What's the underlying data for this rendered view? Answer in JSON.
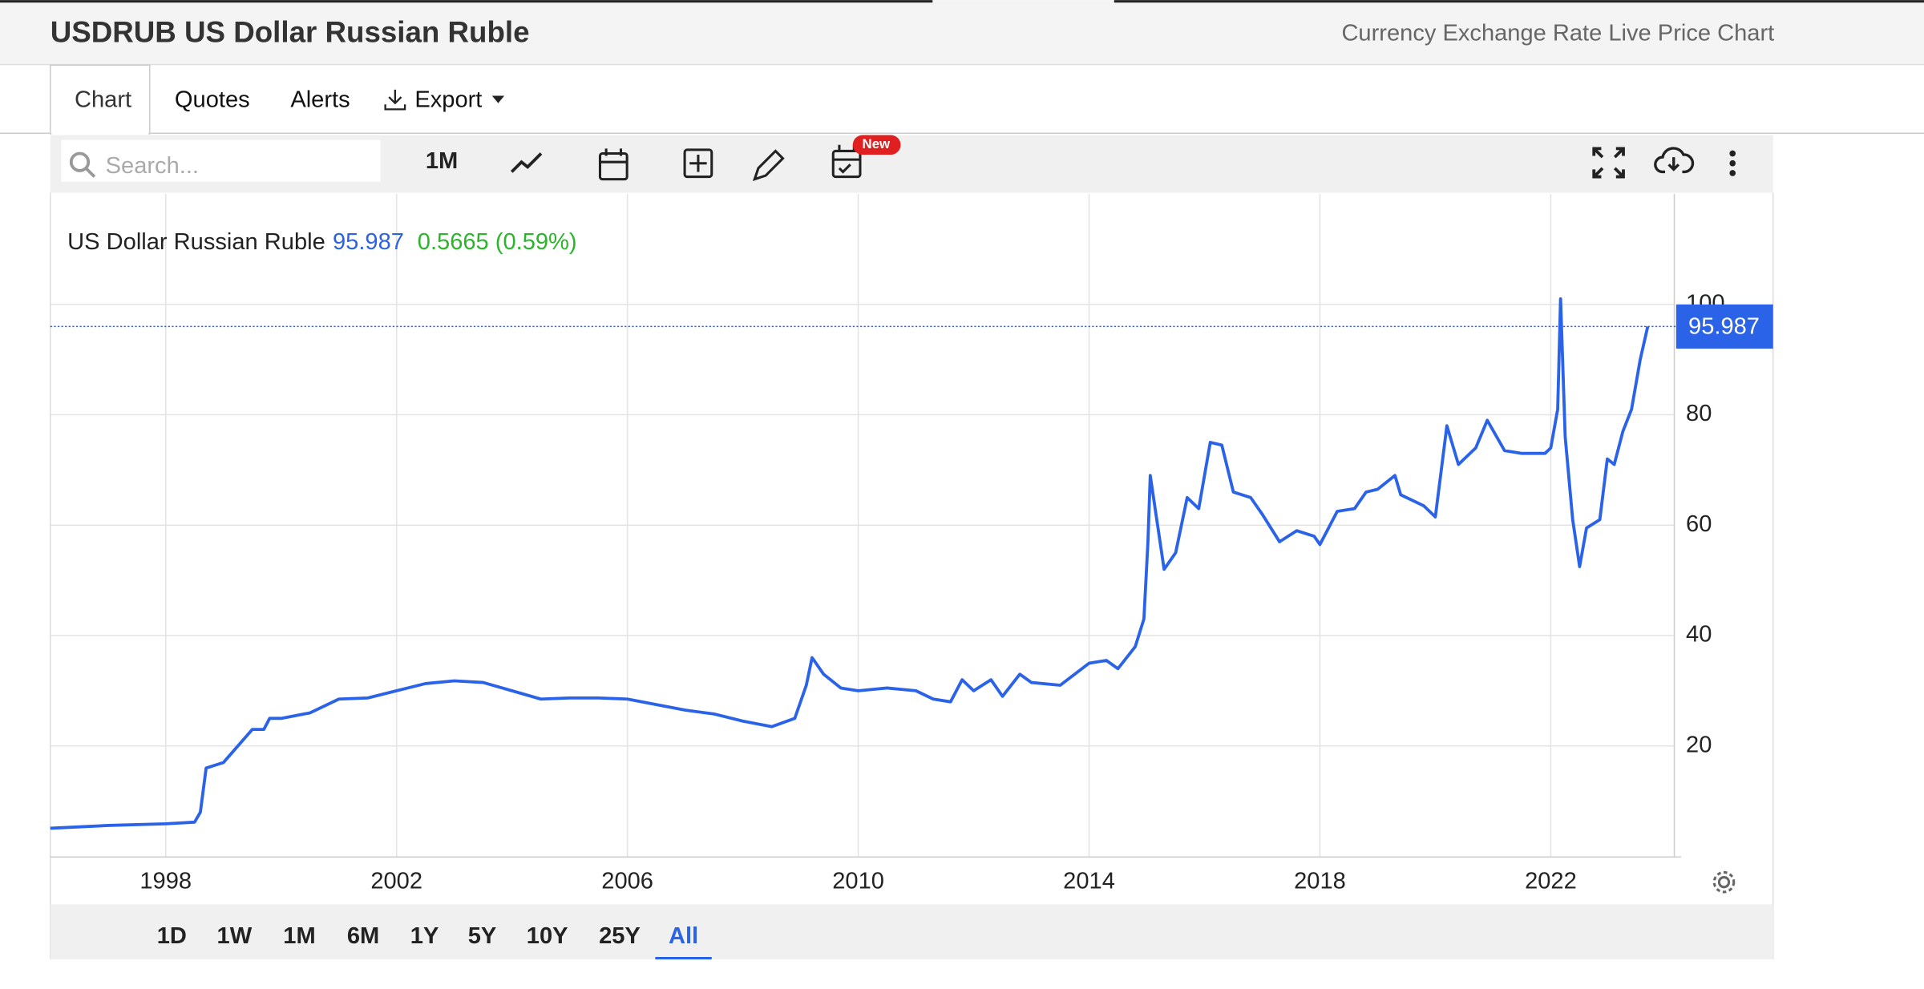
{
  "header": {
    "title": "USDRUB US Dollar Russian Ruble",
    "subtitle": "Currency Exchange Rate Live Price Chart"
  },
  "tabs": [
    "Chart",
    "Quotes",
    "Alerts",
    "Export"
  ],
  "toolbar": {
    "search_placeholder": "Search...",
    "interval": "1M",
    "badge": "New"
  },
  "ranges": [
    "1D",
    "1W",
    "1M",
    "6M",
    "1Y",
    "5Y",
    "10Y",
    "25Y",
    "All"
  ],
  "active_range": 8,
  "chart_data": {
    "type": "line",
    "change": "0.5665 (0.59%)",
    "x": [
      1996.0,
      1997.0,
      1998.0,
      1998.5,
      1998.6,
      1998.7,
      1999.0,
      1999.5,
      1999.7,
      1999.8,
      2000.0,
      2000.5,
      2001.0,
      2001.5,
      2002.0,
      2002.5,
      2003.0,
      2003.5,
      2004.0,
      2004.5,
      2005.0,
      2005.5,
      2006.0,
      2006.5,
      2007.0,
      2007.5,
      2008.0,
      2008.5,
      2008.9,
      2009.1,
      2009.2,
      2009.4,
      2009.7,
      2010.0,
      2010.5,
      2011.0,
      2011.3,
      2011.6,
      2011.8,
      2012.0,
      2012.3,
      2012.5,
      2012.8,
      2013.0,
      2013.5,
      2014.0,
      2014.3,
      2014.5,
      2014.8,
      2014.95,
      2015.02,
      2015.06,
      2015.3,
      2015.5,
      2015.7,
      2015.9,
      2016.1,
      2016.3,
      2016.5,
      2016.8,
      2017.0,
      2017.3,
      2017.6,
      2017.9,
      2018.0,
      2018.3,
      2018.6,
      2018.8,
      2019.0,
      2019.3,
      2019.4,
      2019.8,
      2020.0,
      2020.2,
      2020.4,
      2020.7,
      2020.9,
      2021.2,
      2021.5,
      2021.9,
      2022.0,
      2022.12,
      2022.17,
      2022.25,
      2022.38,
      2022.5,
      2022.62,
      2022.85,
      2022.98,
      2023.1,
      2023.25,
      2023.4,
      2023.55,
      2023.68
    ],
    "series": [
      {
        "name": "US Dollar Russian Ruble",
        "color": "#2a62e8",
        "values": [
          5.1,
          5.6,
          5.9,
          6.2,
          8,
          16,
          17,
          23,
          23,
          25,
          25,
          26,
          28.5,
          28.7,
          30,
          31.3,
          31.8,
          31.5,
          30,
          28.5,
          28.7,
          28.7,
          28.5,
          27.5,
          26.5,
          25.8,
          24.5,
          23.5,
          25,
          31,
          36,
          33,
          30.5,
          30,
          30.5,
          30,
          28.5,
          28,
          32,
          30,
          32,
          29,
          33,
          31.5,
          31,
          35,
          35.5,
          34,
          38,
          43,
          57,
          69,
          52,
          55,
          65,
          63,
          75,
          74.5,
          66,
          65,
          62,
          57,
          59,
          58,
          56.5,
          62.5,
          63,
          66,
          66.5,
          69,
          65.5,
          63.5,
          61.5,
          78,
          71,
          74,
          79,
          73.5,
          73,
          73,
          74,
          81,
          101,
          76,
          61,
          52.5,
          59.5,
          61,
          72,
          71,
          77,
          81,
          90,
          95.987
        ]
      }
    ],
    "xlim": [
      1996,
      2024.13
    ],
    "ylim": [
      0,
      120
    ],
    "xticks": [
      1998,
      2002,
      2006,
      2010,
      2014,
      2018,
      2022
    ],
    "yticks": [
      20,
      40,
      60,
      80,
      100
    ],
    "grid": true
  }
}
